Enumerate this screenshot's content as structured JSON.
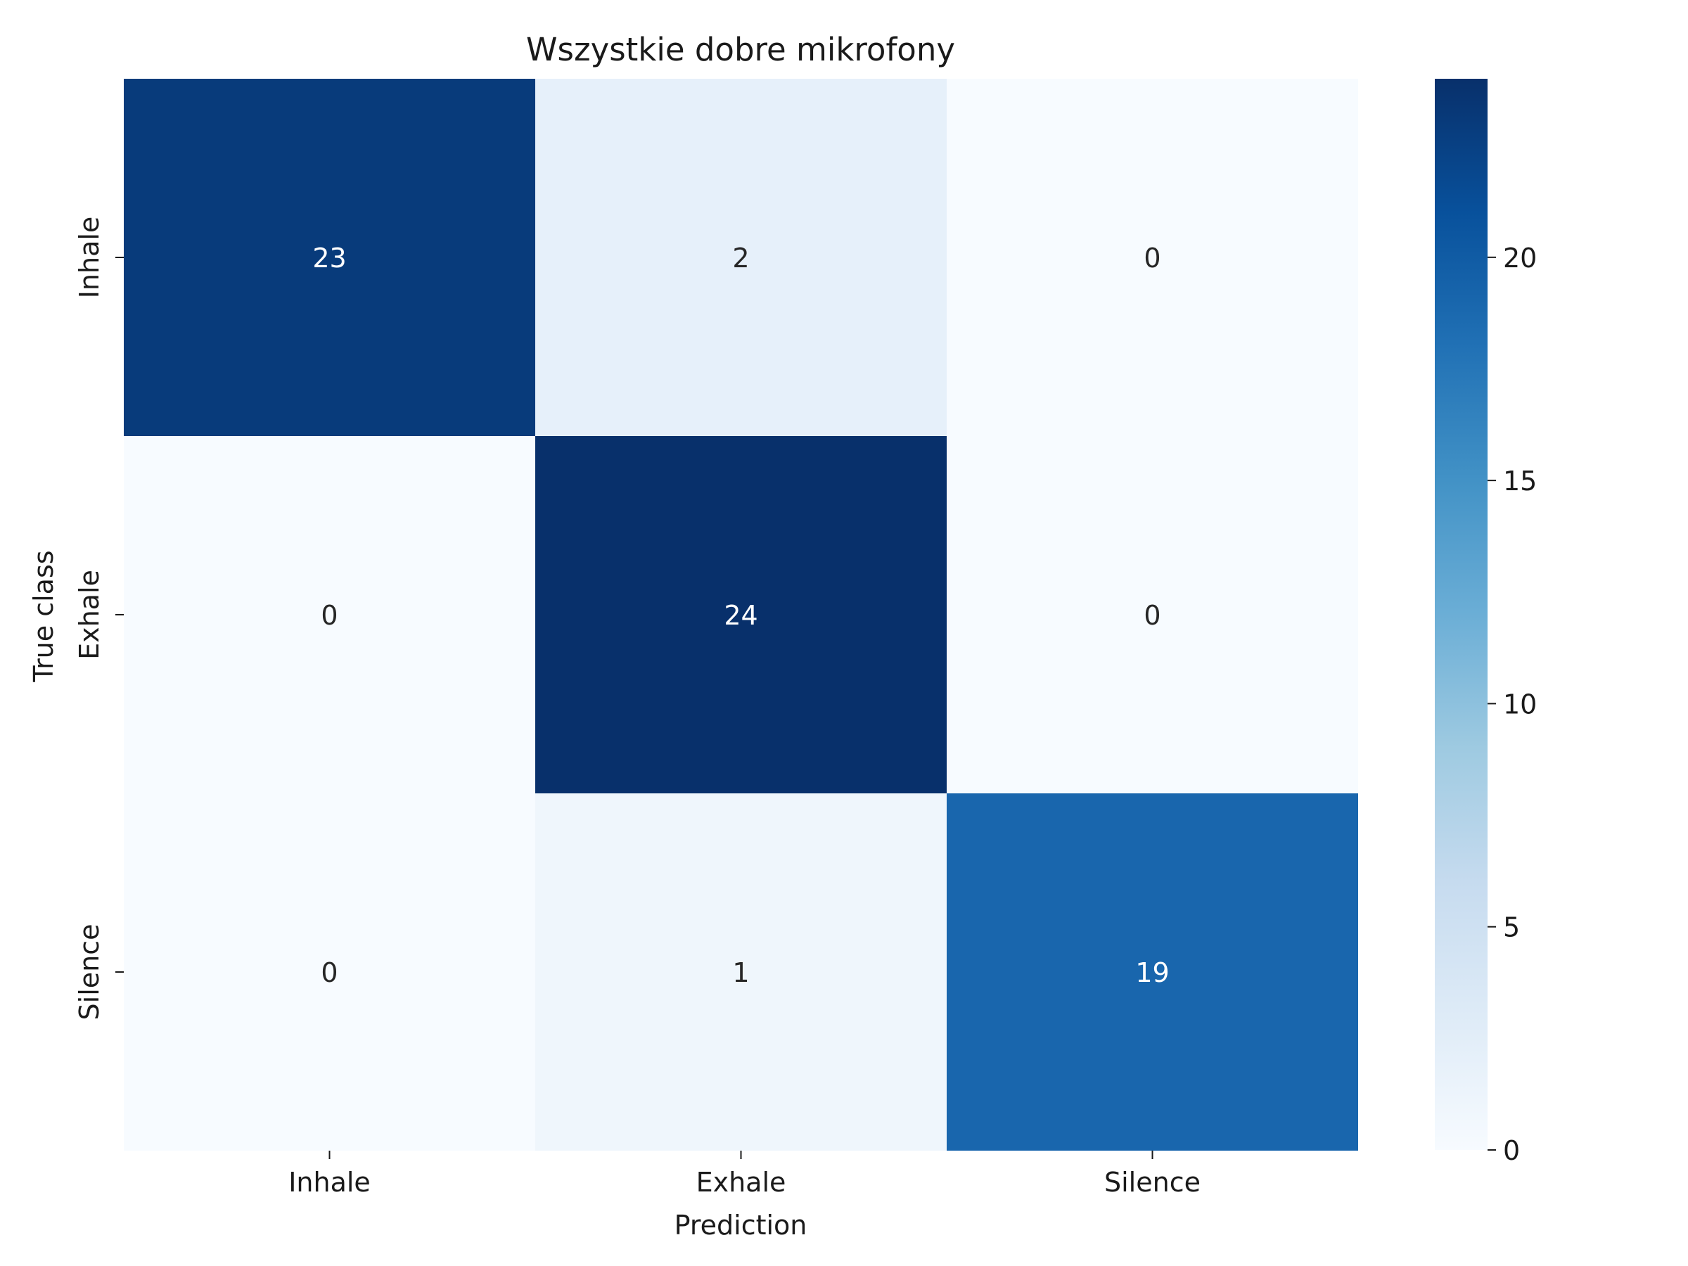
{
  "chart_data": {
    "type": "heatmap",
    "title": "Wszystkie dobre mikrofony",
    "xlabel": "Prediction",
    "ylabel": "True class",
    "x_categories": [
      "Inhale",
      "Exhale",
      "Silence"
    ],
    "y_categories": [
      "Inhale",
      "Exhale",
      "Silence"
    ],
    "matrix": [
      [
        23,
        2,
        0
      ],
      [
        0,
        24,
        0
      ],
      [
        0,
        1,
        19
      ]
    ],
    "colorbar": {
      "range": [
        0,
        24
      ],
      "ticks": [
        "0",
        "5",
        "10",
        "15",
        "20"
      ],
      "colormap": "Blues"
    },
    "colors": {
      "low": "#f7fbff",
      "high": "#08306b",
      "text_light": "#ffffff",
      "text_dark": "#262626"
    }
  }
}
